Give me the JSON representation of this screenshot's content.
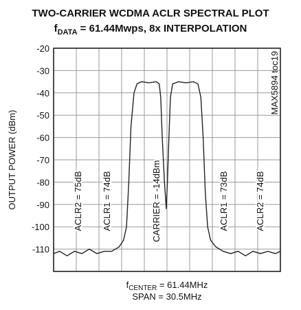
{
  "chart_data": {
    "type": "line",
    "title": "TWO-CARRIER WCDMA ACLR SPECTRAL PLOT",
    "subtitle": [
      "f",
      "DATA",
      " = 61.44Mwps, 8x INTERPOLATION"
    ],
    "xlabel": [
      "f",
      "CENTER",
      " = 61.44MHz"
    ],
    "xlabel2": "SPAN = 30.5MHz",
    "ylabel": "OUTPUT POWER (dBm)",
    "figure_id": "MAX5894 toc19",
    "annotations": [
      "ACLR2 = 75dB",
      "ACLR1 = 74dB",
      "CARRIER = -14dBm",
      "ACLR1 = 73dB",
      "ACLR2 = 74dB"
    ],
    "x": [
      46.19,
      47,
      48,
      49,
      50,
      51,
      52,
      53,
      54,
      55,
      55.6,
      56.0,
      56.3,
      56.6,
      57.0,
      57.4,
      58,
      59,
      60,
      60.4,
      60.6,
      60.8,
      61.1,
      61.35,
      61.5,
      61.7,
      61.9,
      62.2,
      63,
      64,
      65,
      65.6,
      66.0,
      66.3,
      66.6,
      66.9,
      67.3,
      68,
      69,
      70,
      71,
      72,
      73,
      74,
      75,
      76,
      76.69
    ],
    "values": [
      -112,
      -111,
      -113,
      -111,
      -112,
      -110,
      -112,
      -111,
      -111,
      -109,
      -106,
      -100,
      -80,
      -55,
      -40,
      -36,
      -35,
      -35.5,
      -35,
      -36,
      -42,
      -60,
      -80,
      -92,
      -80,
      -60,
      -42,
      -36,
      -35,
      -35.5,
      -35,
      -36,
      -42,
      -60,
      -85,
      -100,
      -106,
      -109,
      -111,
      -112,
      -111,
      -113,
      -111,
      -112,
      -111,
      -112,
      -111
    ],
    "color": "#222222",
    "xlim": [
      46.19,
      76.69
    ],
    "ylim": [
      -120,
      -20
    ],
    "yticks": [
      -20,
      -30,
      -40,
      -50,
      -60,
      -70,
      -80,
      -90,
      -100,
      -110
    ],
    "grid": true
  }
}
